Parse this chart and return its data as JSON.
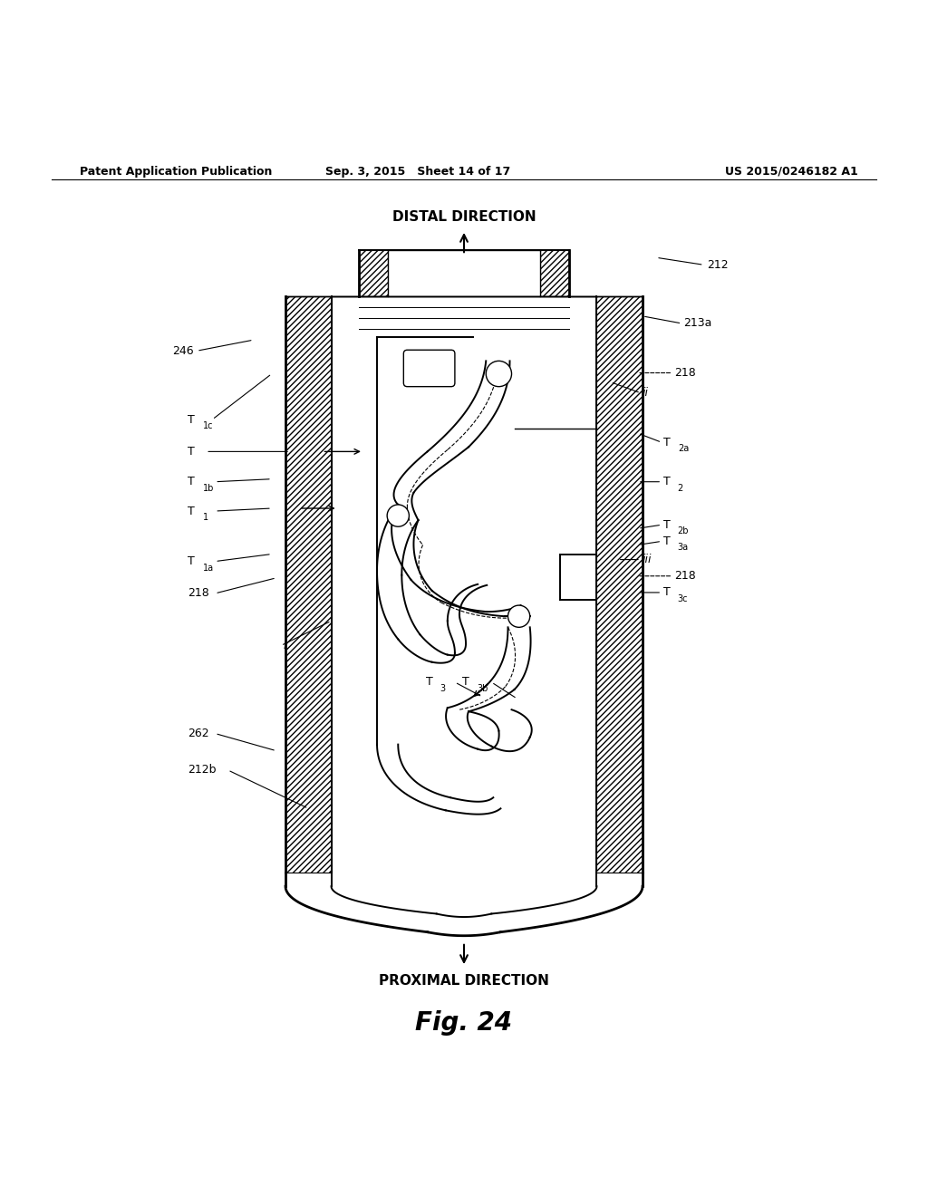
{
  "bg_color": "#ffffff",
  "line_color": "#000000",
  "header_left": "Patent Application Publication",
  "header_center": "Sep. 3, 2015   Sheet 14 of 17",
  "header_right": "US 2015/0246182 A1",
  "title_top": "DISTAL DIRECTION",
  "title_bottom": "PROXIMAL DIRECTION",
  "fig_label": "Fig. 24"
}
